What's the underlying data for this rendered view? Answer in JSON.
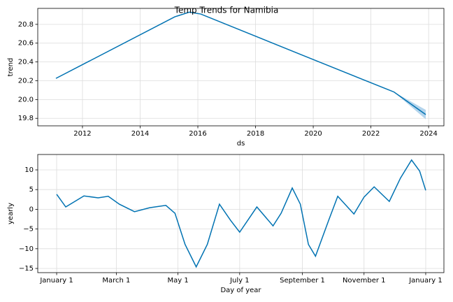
{
  "chart_data": [
    {
      "type": "line",
      "title": "Temp Trends for Namibia",
      "x_label": "ds",
      "y_label": "trend",
      "grid": true,
      "color": "#0072B2",
      "band_color": "#b3d4ec",
      "xlim": [
        2010.45,
        2024.53
      ],
      "ylim": [
        19.72,
        20.97
      ],
      "xticks": [
        2012,
        2014,
        2016,
        2018,
        2020,
        2022,
        2024
      ],
      "yticks": [
        19.8,
        {
          "value": 20,
          "label": "20.0"
        },
        20.2,
        20.4,
        20.6,
        20.8
      ],
      "x": [
        2011.08,
        2015.2,
        2015.7,
        2016.1,
        2019.64,
        2022.8,
        2023.9
      ],
      "values": [
        20.225,
        20.88,
        20.93,
        20.91,
        20.47,
        20.08,
        19.84
      ],
      "band": {
        "x": [
          2022.8,
          2023.9
        ],
        "lower": [
          20.08,
          19.79
        ],
        "upper": [
          20.08,
          19.89
        ]
      }
    },
    {
      "type": "line",
      "x_label": "Day of year",
      "y_label": "yearly",
      "grid": true,
      "color": "#0072B2",
      "xlim": [
        -18.7,
        383
      ],
      "ylim": [
        -16.06,
        13.9
      ],
      "xticks": [
        {
          "value": 0,
          "label": "January 1"
        },
        {
          "value": 59,
          "label": "March 1"
        },
        {
          "value": 120,
          "label": "May 1"
        },
        {
          "value": 181,
          "label": "July 1"
        },
        {
          "value": 243,
          "label": "September 1"
        },
        {
          "value": 304,
          "label": "November 1"
        },
        {
          "value": 365,
          "label": "January 1"
        }
      ],
      "yticks": [
        {
          "value": -15,
          "label": "−15"
        },
        {
          "value": -10,
          "label": "−10"
        },
        {
          "value": -5,
          "label": "−5"
        },
        0,
        5,
        10
      ],
      "x": [
        0,
        9,
        27,
        41,
        51,
        62,
        77,
        92,
        108,
        117,
        127,
        138,
        149,
        161,
        172,
        181,
        198,
        214,
        222,
        233,
        241,
        249,
        256,
        269,
        278,
        294,
        304,
        314,
        329,
        340,
        351,
        359,
        365
      ],
      "values": [
        3.8,
        0.6,
        3.4,
        2.9,
        3.3,
        1.3,
        -0.6,
        0.4,
        1.0,
        -1.0,
        -8.9,
        -14.6,
        -8.9,
        1.3,
        -2.8,
        -5.8,
        0.6,
        -4.2,
        -1.0,
        5.4,
        1.3,
        -8.9,
        -11.9,
        -2.8,
        3.3,
        -1.2,
        3.1,
        5.7,
        2.0,
        7.9,
        12.5,
        9.7,
        4.8
      ]
    }
  ]
}
